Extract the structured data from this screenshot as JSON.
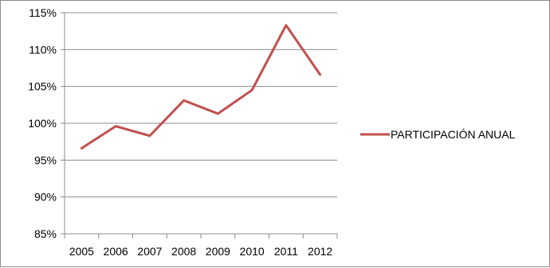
{
  "chart_data": {
    "type": "line",
    "categories": [
      "2005",
      "2006",
      "2007",
      "2008",
      "2009",
      "2010",
      "2011",
      "2012"
    ],
    "series": [
      {
        "name": "PARTICIPACIÓN ANUAL",
        "color": "#c0504d",
        "values": [
          96.6,
          99.6,
          98.3,
          103.1,
          101.3,
          104.5,
          113.3,
          106.6
        ]
      }
    ],
    "ylim": [
      85,
      115
    ],
    "yticks": [
      85,
      90,
      95,
      100,
      105,
      110,
      115
    ],
    "ytick_labels": [
      "85%",
      "90%",
      "95%",
      "100%",
      "105%",
      "110%",
      "115%"
    ],
    "grid": true,
    "legend_position": "right",
    "title": "",
    "xlabel": "",
    "ylabel": ""
  }
}
